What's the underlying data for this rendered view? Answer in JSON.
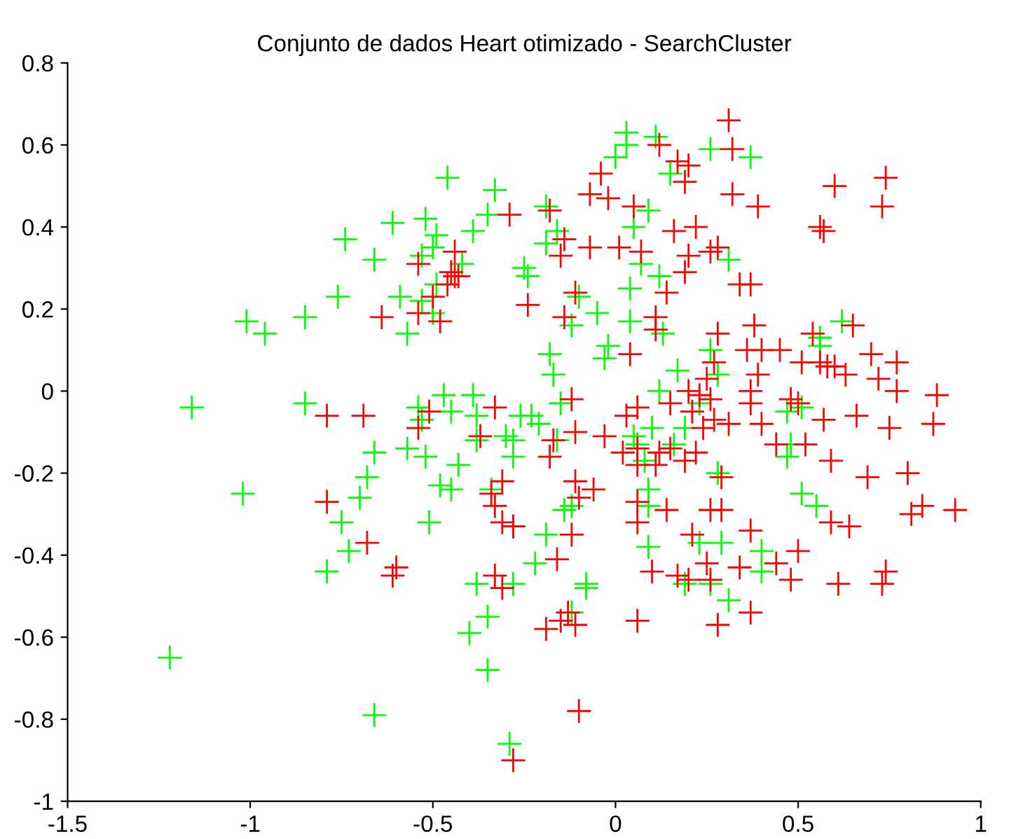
{
  "chart_data": {
    "type": "scatter",
    "title": "Conjunto de dados Heart otimizado - SearchCluster",
    "xlim": [
      -1.5,
      1
    ],
    "xticks": [
      -1.5,
      -1,
      -0.5,
      0,
      0.5,
      1
    ],
    "ylim": [
      -1,
      0.8
    ],
    "yticks": [
      -1,
      -0.8,
      -0.6,
      -0.4,
      -0.2,
      0,
      0.2,
      0.4,
      0.6,
      0.8
    ],
    "marker": "cross",
    "grid": false,
    "series": [
      {
        "color": "#00ff00",
        "x": [
          -1.16,
          -1.02,
          -1.22,
          -1.01,
          -0.96,
          -0.85,
          -0.85,
          -0.76,
          -0.74,
          -0.66,
          -0.66,
          -0.68,
          -0.7,
          -0.75,
          -0.73,
          -0.79,
          -0.66,
          -0.61,
          -0.59,
          -0.57,
          -0.54,
          -0.57,
          -0.53,
          -0.53,
          -0.52,
          -0.53,
          -0.52,
          -0.51,
          -0.49,
          -0.5,
          -0.49,
          -0.46,
          -0.48,
          -0.47,
          -0.45,
          -0.43,
          -0.45,
          -0.5,
          -0.42,
          -0.39,
          -0.39,
          -0.38,
          -0.38,
          -0.4,
          -0.38,
          -0.35,
          -0.35,
          -0.35,
          -0.33,
          -0.34,
          -0.3,
          -0.28,
          -0.26,
          -0.23,
          -0.25,
          -0.24,
          -0.21,
          -0.19,
          -0.16,
          -0.19,
          -0.18,
          -0.17,
          -0.15,
          -0.16,
          -0.14,
          -0.12,
          -0.12,
          -0.08,
          -0.12,
          -0.1,
          -0.03,
          -0.02,
          -0.05,
          0.03,
          0.03,
          0.0,
          0.04,
          0.05,
          0.07,
          0.09,
          0.04,
          0.05,
          0.06,
          0.08,
          0.1,
          0.09,
          0.09,
          0.13,
          0.11,
          0.15,
          0.12,
          0.12,
          0.16,
          0.26,
          0.31,
          0.37,
          0.19,
          0.56,
          0.62,
          0.51,
          0.47,
          0.56,
          0.23,
          0.17,
          0.26,
          0.28,
          -0.28,
          -0.19,
          -0.22,
          -0.28,
          -0.08,
          0.09,
          0.23,
          0.29,
          0.4,
          0.4,
          0.31,
          0.19,
          0.26,
          0.28,
          0.48,
          0.47,
          0.51,
          0.55,
          -0.29
        ],
        "values": [
          -0.04,
          -0.25,
          -0.65,
          0.17,
          0.14,
          0.18,
          -0.03,
          0.23,
          0.37,
          0.32,
          -0.15,
          -0.21,
          -0.26,
          -0.32,
          -0.39,
          -0.44,
          -0.79,
          0.41,
          0.23,
          0.14,
          -0.04,
          -0.14,
          0.33,
          0.22,
          0.42,
          -0.07,
          -0.16,
          -0.32,
          0.26,
          0.19,
          0.38,
          0.52,
          -0.23,
          -0.01,
          -0.05,
          -0.18,
          -0.24,
          0.35,
          0.31,
          0.39,
          -0.01,
          -0.06,
          -0.12,
          -0.59,
          -0.47,
          -0.68,
          -0.55,
          0.43,
          0.49,
          -0.24,
          -0.11,
          -0.16,
          -0.06,
          -0.06,
          0.3,
          0.28,
          -0.08,
          0.45,
          0.39,
          0.36,
          0.09,
          0.04,
          -0.03,
          -0.12,
          -0.29,
          -0.28,
          -0.54,
          -0.48,
          0.16,
          0.23,
          0.08,
          0.11,
          0.19,
          0.63,
          0.6,
          0.57,
          0.25,
          0.4,
          0.31,
          0.44,
          0.17,
          -0.11,
          -0.13,
          -0.17,
          -0.09,
          -0.24,
          -0.28,
          0.14,
          0.62,
          0.53,
          0.28,
          0.0,
          -0.13,
          0.59,
          0.32,
          0.57,
          -0.09,
          0.13,
          0.17,
          -0.04,
          -0.05,
          0.11,
          -0.03,
          0.05,
          0.1,
          0.04,
          -0.12,
          -0.35,
          -0.42,
          -0.47,
          -0.47,
          -0.38,
          -0.37,
          -0.37,
          -0.39,
          -0.44,
          -0.51,
          -0.47,
          -0.47,
          -0.2,
          -0.13,
          -0.16,
          -0.25,
          -0.28,
          -0.86
        ]
      },
      {
        "color": "#ff0000",
        "x": [
          -0.79,
          -0.79,
          -0.68,
          -0.61,
          -0.6,
          -0.64,
          -0.54,
          -0.54,
          -0.54,
          -0.5,
          -0.48,
          -0.44,
          -0.45,
          -0.44,
          -0.46,
          -0.43,
          -0.29,
          -0.69,
          -0.51,
          -0.33,
          -0.37,
          -0.31,
          -0.34,
          -0.33,
          -0.31,
          -0.28,
          -0.33,
          -0.31,
          -0.28,
          0.31,
          0.12,
          0.32,
          0.17,
          0.2,
          -0.04,
          0.19,
          -0.07,
          -0.02,
          0.32,
          0.39,
          0.05,
          0.6,
          0.74,
          0.73,
          0.56,
          0.57,
          -0.18,
          0.16,
          0.22,
          -0.14,
          -0.15,
          -0.07,
          0.01,
          0.07,
          0.2,
          0.26,
          0.28,
          0.19,
          0.34,
          0.37,
          -0.11,
          -0.24,
          0.14,
          -0.14,
          0.11,
          0.11,
          0.38,
          0.28,
          0.54,
          0.65,
          0.04,
          0.27,
          0.36,
          0.4,
          0.45,
          0.51,
          0.56,
          0.58,
          0.6,
          0.63,
          0.7,
          0.77,
          0.72,
          0.77,
          0.88,
          0.39,
          0.25,
          0.2,
          0.23,
          0.26,
          0.37,
          0.37,
          0.48,
          0.5,
          0.15,
          0.06,
          -0.12,
          0.03,
          0.21,
          0.27,
          0.31,
          0.4,
          0.57,
          0.66,
          0.75,
          0.87,
          -0.11,
          0.24,
          -0.17,
          -0.03,
          -0.18,
          0.02,
          0.06,
          0.06,
          0.11,
          0.12,
          0.15,
          0.19,
          0.22,
          0.44,
          0.52,
          0.59,
          0.69,
          0.8,
          0.29,
          -0.11,
          -0.06,
          -0.1,
          0.06,
          0.14,
          0.26,
          0.29,
          0.06,
          -0.28,
          -0.12,
          -0.16,
          0.21,
          0.37,
          0.59,
          0.64,
          0.81,
          0.84,
          0.93,
          0.5,
          0.44,
          0.34,
          0.25,
          0.1,
          0.17,
          0.2,
          0.26,
          0.48,
          0.61,
          0.74,
          0.73,
          -0.13,
          -0.15,
          -0.11,
          -0.19,
          0.06,
          0.37,
          0.28,
          -0.1
        ],
        "values": [
          -0.06,
          -0.27,
          -0.37,
          -0.45,
          -0.43,
          0.18,
          -0.09,
          0.31,
          0.19,
          0.23,
          0.17,
          0.34,
          0.29,
          0.28,
          0.26,
          0.28,
          0.43,
          -0.06,
          -0.05,
          -0.04,
          -0.11,
          -0.22,
          -0.25,
          -0.28,
          -0.32,
          -0.33,
          -0.45,
          -0.48,
          -0.9,
          0.66,
          0.6,
          0.59,
          0.56,
          0.55,
          0.53,
          0.51,
          0.48,
          0.47,
          0.48,
          0.45,
          0.45,
          0.5,
          0.52,
          0.45,
          0.4,
          0.39,
          0.44,
          0.39,
          0.4,
          0.37,
          0.33,
          0.35,
          0.35,
          0.34,
          0.33,
          0.34,
          0.35,
          0.29,
          0.26,
          0.26,
          0.24,
          0.21,
          0.24,
          0.18,
          0.18,
          0.15,
          0.16,
          0.14,
          0.14,
          0.16,
          0.09,
          0.07,
          0.1,
          0.1,
          0.1,
          0.07,
          0.07,
          0.06,
          0.06,
          0.04,
          0.09,
          0.07,
          0.03,
          0.0,
          -0.01,
          0.04,
          0.03,
          0.0,
          -0.01,
          -0.02,
          0.0,
          -0.03,
          -0.02,
          -0.03,
          -0.03,
          -0.04,
          -0.02,
          -0.06,
          -0.05,
          -0.07,
          -0.08,
          -0.08,
          -0.07,
          -0.06,
          -0.09,
          -0.08,
          -0.1,
          -0.09,
          -0.12,
          -0.11,
          -0.16,
          -0.15,
          -0.14,
          -0.18,
          -0.18,
          -0.15,
          -0.14,
          -0.17,
          -0.15,
          -0.13,
          -0.13,
          -0.17,
          -0.21,
          -0.2,
          -0.21,
          -0.22,
          -0.24,
          -0.26,
          -0.27,
          -0.29,
          -0.29,
          -0.29,
          -0.32,
          -0.33,
          -0.35,
          -0.41,
          -0.35,
          -0.34,
          -0.32,
          -0.33,
          -0.3,
          -0.28,
          -0.29,
          -0.39,
          -0.42,
          -0.43,
          -0.42,
          -0.44,
          -0.45,
          -0.46,
          -0.46,
          -0.46,
          -0.47,
          -0.44,
          -0.47,
          -0.54,
          -0.56,
          -0.57,
          -0.58,
          -0.56,
          -0.54,
          -0.57,
          -0.78
        ]
      }
    ]
  }
}
